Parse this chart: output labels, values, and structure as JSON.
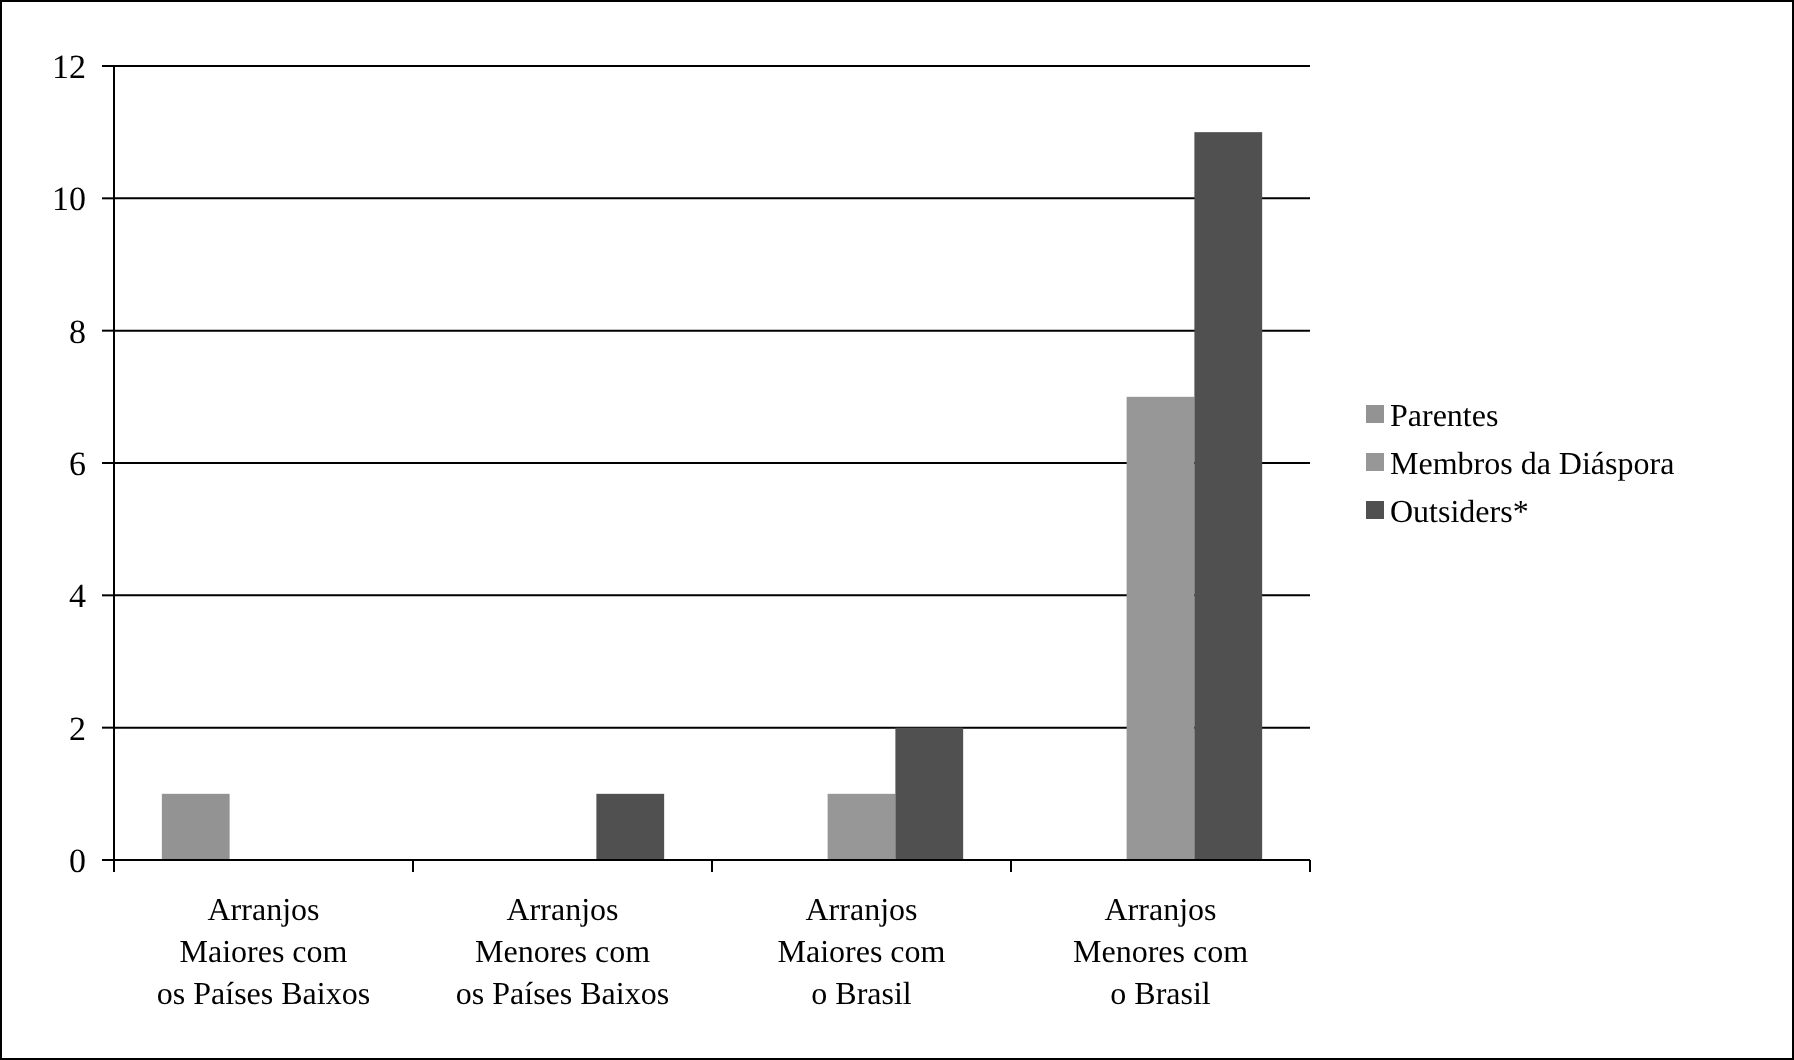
{
  "chart_data": {
    "type": "bar",
    "categories": [
      "Arranjos\nMaiores com\nos Países Baixos",
      "Arranjos\nMenores com\nos Países Baixos",
      "Arranjos\nMaiores com\no Brasil",
      "Arranjos\nMenores com\no Brasil"
    ],
    "series": [
      {
        "name": "Parentes",
        "color": "#939393",
        "values": [
          1,
          0,
          0,
          0
        ]
      },
      {
        "name": "Membros da Diáspora",
        "color": "#979797",
        "values": [
          0,
          0,
          1,
          7
        ]
      },
      {
        "name": "Outsiders*",
        "color": "#505050",
        "values": [
          0,
          1,
          2,
          11
        ]
      }
    ],
    "ylim": [
      0,
      12
    ],
    "yticks": [
      0,
      2,
      4,
      6,
      8,
      10,
      12
    ],
    "grid": "y",
    "legend": "right"
  }
}
